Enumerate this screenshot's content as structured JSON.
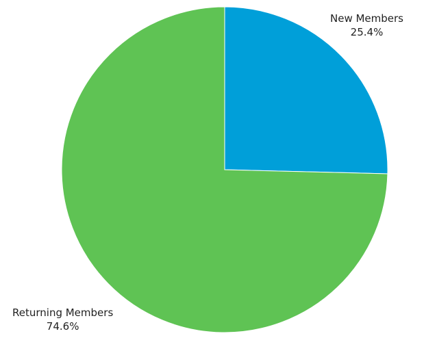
{
  "chart_data": {
    "type": "pie",
    "slices": [
      {
        "label": "New Members",
        "value": 25.4,
        "value_label": "25.4%",
        "color": "#009fd9"
      },
      {
        "label": "Returning Members",
        "value": 74.6,
        "value_label": "74.6%",
        "color": "#5fc354"
      }
    ],
    "start_angle": "12 o'clock",
    "direction": "clockwise",
    "legend": "none"
  }
}
